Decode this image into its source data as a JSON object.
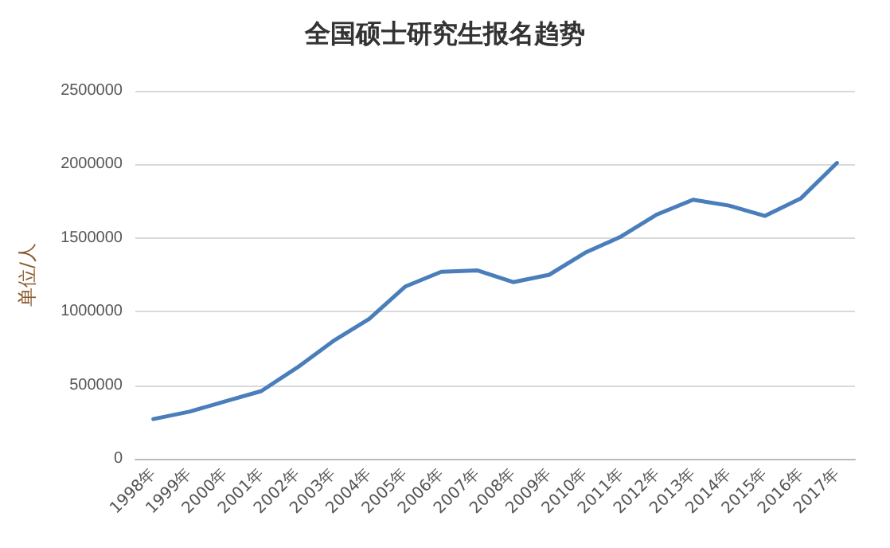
{
  "chart_data": {
    "type": "line",
    "title": "全国硕士研究生报名趋势",
    "ylabel": "单位/人",
    "categories": [
      "1998年",
      "1999年",
      "2000年",
      "2001年",
      "2002年",
      "2003年",
      "2004年",
      "2005年",
      "2006年",
      "2007年",
      "2008年",
      "2009年",
      "2010年",
      "2011年",
      "2012年",
      "2013年",
      "2014年",
      "2015年",
      "2016年",
      "2017年"
    ],
    "series": [
      {
        "color": "#4a7ebb",
        "values": [
          270000,
          320000,
          390000,
          460000,
          620000,
          800000,
          950000,
          1170000,
          1270000,
          1280000,
          1200000,
          1250000,
          1400000,
          1510000,
          1660000,
          1760000,
          1720000,
          1650000,
          1770000,
          2010000
        ]
      }
    ],
    "ylim": [
      0,
      2500000
    ],
    "yticks": [
      0,
      500000,
      1000000,
      1500000,
      2000000,
      2500000
    ],
    "grid": "y",
    "marker": "none",
    "line_style": "solid"
  }
}
